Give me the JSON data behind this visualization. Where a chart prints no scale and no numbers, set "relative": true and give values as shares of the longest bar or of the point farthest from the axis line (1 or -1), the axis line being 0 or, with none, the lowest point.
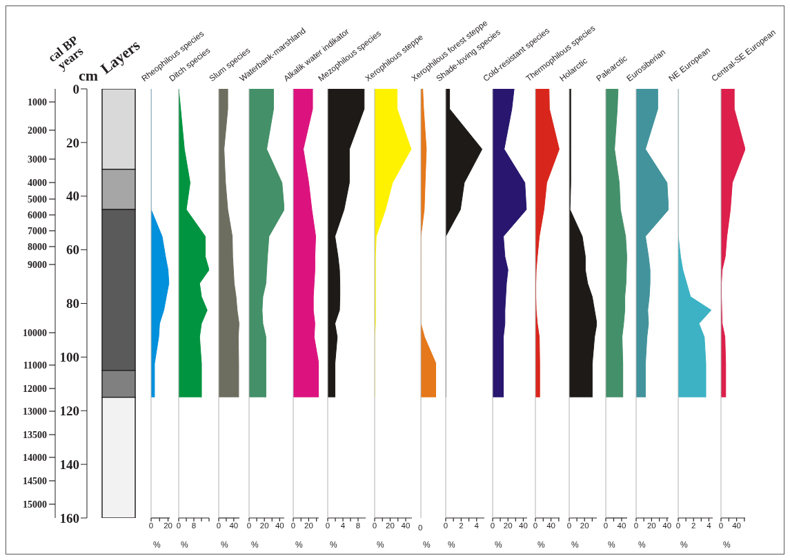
{
  "chart_data": [
    {
      "type": "bar",
      "title": "Layers",
      "ylabel": "cm",
      "y2label": "cal BP years",
      "categories": [
        null
      ],
      "stacked": true,
      "series": [
        {
          "color": "#d9d9d9",
          "values": [
            30
          ]
        },
        {
          "color": "#a6a6a6",
          "values": [
            15
          ]
        },
        {
          "color": "#5a5a5a",
          "values": [
            60
          ]
        },
        {
          "color": "#808080",
          "values": [
            10
          ]
        },
        {
          "color": "#f2f2f2",
          "values": [
            45
          ]
        }
      ],
      "ylim": [
        160,
        0
      ],
      "yticks": [
        0,
        20,
        40,
        60,
        80,
        100,
        120,
        140,
        160
      ],
      "annotations": [
        "1000",
        "2000",
        "3000",
        "4000",
        "5000",
        "6000",
        "7000",
        "8000",
        "9000",
        "10000",
        "11000",
        "12000",
        "13000",
        "13500",
        "14000",
        "14500",
        "15000"
      ]
    },
    {
      "type": "area",
      "orientation": "horizontal",
      "title": "Rheophilous species",
      "xlabel": "%",
      "color": "#0090dc",
      "x": [
        0,
        7.5,
        22.5,
        35,
        45,
        55,
        62.5,
        67.5,
        72.5,
        77.5,
        82.5,
        87.5,
        92.5,
        102.5,
        115
      ],
      "values": [
        0,
        0,
        0,
        0,
        0,
        13,
        17,
        20,
        21,
        18,
        15,
        10,
        9,
        4,
        4
      ],
      "xlim": [
        0,
        22
      ],
      "xticks": [
        0,
        {
          "value": 10,
          "label": null
        },
        20
      ],
      "ylim": [
        160,
        0
      ],
      "tick_labels": "x"
    },
    {
      "type": "area",
      "orientation": "horizontal",
      "title": "Ditch species",
      "xlabel": "%",
      "color": "#009440",
      "x": [
        0,
        7.5,
        22.5,
        35,
        45,
        55,
        62.5,
        67.5,
        72.5,
        77.5,
        82.5,
        87.5,
        92.5,
        102.5,
        115
      ],
      "values": [
        0,
        1,
        3,
        6,
        4,
        14,
        14,
        16,
        11,
        12,
        15,
        12,
        11,
        12,
        12
      ],
      "xlim": [
        0,
        16
      ],
      "xticks": [
        0,
        {
          "value": 4,
          "label": null
        },
        8,
        {
          "value": 12,
          "label": null
        },
        {
          "value": 16,
          "label": null
        }
      ],
      "ylim": [
        160,
        0
      ],
      "tick_labels": "x"
    },
    {
      "type": "area",
      "orientation": "horizontal",
      "title": "Slum species",
      "xlabel": "%",
      "color": "#6e6e60",
      "x": [
        0,
        7.5,
        22.5,
        35,
        45,
        55,
        62.5,
        67.5,
        72.5,
        77.5,
        82.5,
        87.5,
        92.5,
        102.5,
        115
      ],
      "values": [
        24,
        24,
        14,
        18,
        24,
        36,
        37,
        39,
        41,
        46,
        49,
        54,
        52,
        53,
        53
      ],
      "xlim": [
        0,
        55
      ],
      "xticks": [
        0,
        {
          "value": 20,
          "label": null
        },
        40
      ],
      "ylim": [
        160,
        0
      ],
      "tick_labels": "x"
    },
    {
      "type": "area",
      "orientation": "horizontal",
      "title": "Waterbank-marshland",
      "xlabel": "%",
      "color": "#449068",
      "x": [
        0,
        7.5,
        22.5,
        35,
        45,
        55,
        62.5,
        67.5,
        72.5,
        77.5,
        82.5,
        87.5,
        92.5,
        102.5,
        115
      ],
      "values": [
        32,
        32,
        23,
        43,
        46,
        26,
        24,
        23,
        22,
        18,
        17,
        18,
        22,
        22,
        22
      ],
      "xlim": [
        0,
        46
      ],
      "xticks": [
        0,
        {
          "value": 10,
          "label": null
        },
        20,
        {
          "value": 30,
          "label": null
        },
        40
      ],
      "ylim": [
        160,
        0
      ],
      "tick_labels": "x"
    },
    {
      "type": "area",
      "orientation": "horizontal",
      "title": "Alkalik water indikator",
      "xlabel": "%",
      "color": "#dc137f",
      "x": [
        0,
        7.5,
        22.5,
        35,
        45,
        55,
        62.5,
        67.5,
        72.5,
        77.5,
        82.5,
        87.5,
        92.5,
        102.5,
        115
      ],
      "values": [
        25,
        25,
        13,
        20,
        24,
        29,
        28,
        28,
        27,
        26,
        26,
        28,
        27,
        33,
        33
      ],
      "xlim": [
        0,
        33
      ],
      "xticks": [
        0,
        {
          "value": 10,
          "label": null
        },
        20,
        {
          "value": 30,
          "label": null
        }
      ],
      "ylim": [
        160,
        0
      ],
      "tick_labels": "x"
    },
    {
      "type": "area",
      "orientation": "horizontal",
      "title": "Mezophilous species",
      "xlabel": "%",
      "color": "#1e1a17",
      "x": [
        0,
        7.5,
        22.5,
        35,
        45,
        55,
        62.5,
        67.5,
        72.5,
        77.5,
        82.5,
        87.5,
        92.5,
        102.5,
        115
      ],
      "values": [
        9.6,
        9.6,
        5.7,
        5.7,
        4.3,
        1.9,
        2.7,
        3.1,
        3.2,
        3.2,
        3.1,
        1.9,
        2.5,
        1.9,
        1.9
      ],
      "xlim": [
        0,
        10
      ],
      "xticks": [
        0,
        {
          "value": 2,
          "label": null
        },
        4,
        {
          "value": 6,
          "label": null
        },
        8
      ],
      "ylim": [
        160,
        0
      ],
      "tick_labels": "x"
    },
    {
      "type": "area",
      "orientation": "horizontal",
      "title": "Xerophilous steppe",
      "xlabel": "%",
      "color": "#fff200",
      "x": [
        0,
        7.5,
        22.5,
        35,
        45,
        55,
        62.5,
        67.5,
        72.5,
        77.5,
        82.5,
        87.5,
        92.5,
        102.5,
        115
      ],
      "values": [
        29,
        29,
        47,
        23,
        14,
        2,
        1,
        1,
        1,
        1,
        1,
        1,
        0,
        0,
        0
      ],
      "xlim": [
        0,
        48
      ],
      "xticks": [
        0,
        {
          "value": 10,
          "label": null
        },
        20,
        {
          "value": 30,
          "label": null
        },
        40
      ],
      "ylim": [
        160,
        0
      ],
      "tick_labels": "x"
    },
    {
      "type": "area",
      "orientation": "horizontal",
      "relative": true,
      "title": "Xerophilous forest steppe",
      "xlabel": "%",
      "annotations": [
        "0"
      ],
      "color": "#e5781a",
      "x": [
        0,
        7.5,
        22.5,
        35,
        45,
        55,
        62.5,
        67.5,
        72.5,
        77.5,
        82.5,
        87.5,
        92.5,
        102.5,
        115
      ],
      "values": [
        0.12,
        0.18,
        0.36,
        0.28,
        0.22,
        0,
        0,
        0,
        0,
        0,
        0,
        0,
        0.24,
        1,
        1
      ],
      "ylim": [
        160,
        0
      ],
      "tick_labels": "x"
    },
    {
      "type": "area",
      "orientation": "horizontal",
      "title": "Shade-loving species",
      "xlabel": "%",
      "color": "#1e1a17",
      "x": [
        0,
        7.5,
        22.5,
        35,
        45,
        55,
        62.5,
        67.5,
        72.5,
        77.5,
        82.5,
        87.5,
        92.5,
        102.5,
        115
      ],
      "values": [
        0.5,
        0.5,
        4.7,
        2.4,
        1.9,
        0,
        0,
        0,
        0,
        0,
        0,
        0,
        0,
        0,
        0
      ],
      "xlim": [
        0,
        5
      ],
      "xticks": [
        0,
        {
          "value": 1,
          "label": null
        },
        2,
        {
          "value": 3,
          "label": null
        },
        4
      ],
      "ylim": [
        160,
        0
      ],
      "tick_labels": "x"
    },
    {
      "type": "area",
      "orientation": "horizontal",
      "title": "Cold-resistant species",
      "xlabel": "%",
      "color": "#28166f",
      "x": [
        0,
        7.5,
        22.5,
        35,
        45,
        55,
        62.5,
        67.5,
        72.5,
        77.5,
        82.5,
        87.5,
        92.5,
        102.5,
        115
      ],
      "values": [
        28,
        25,
        15,
        42,
        44,
        14,
        16,
        20,
        18,
        17,
        16,
        16,
        14,
        14,
        14
      ],
      "xlim": [
        0,
        45
      ],
      "xticks": [
        0,
        {
          "value": 10,
          "label": null
        },
        20,
        {
          "value": 30,
          "label": null
        },
        40
      ],
      "ylim": [
        160,
        0
      ],
      "tick_labels": "x"
    },
    {
      "type": "area",
      "orientation": "horizontal",
      "title": "Thermophilous species",
      "xlabel": "%",
      "color": "#d9261c",
      "x": [
        0,
        7.5,
        22.5,
        35,
        45,
        55,
        62.5,
        67.5,
        72.5,
        77.5,
        82.5,
        87.5,
        92.5,
        102.5,
        115
      ],
      "values": [
        35,
        36,
        61,
        29,
        22,
        10,
        5,
        2,
        1,
        1,
        2,
        5,
        10,
        11,
        11
      ],
      "xlim": [
        0,
        62
      ],
      "xticks": [
        0,
        {
          "value": 20,
          "label": null
        },
        40,
        {
          "value": 60,
          "label": null
        }
      ],
      "ylim": [
        160,
        0
      ],
      "tick_labels": "x"
    },
    {
      "type": "area",
      "orientation": "horizontal",
      "title": "Holarctic",
      "xlabel": "%",
      "color": "#1e1a17",
      "x": [
        0,
        7.5,
        22.5,
        35,
        45,
        55,
        62.5,
        67.5,
        72.5,
        77.5,
        82.5,
        87.5,
        92.5,
        102.5,
        115
      ],
      "values": [
        2,
        2,
        2,
        2,
        1,
        17,
        21,
        21,
        24,
        30,
        33,
        36,
        33,
        30,
        30
      ],
      "xlim": [
        0,
        36
      ],
      "xticks": [
        0,
        {
          "value": 10,
          "label": null
        },
        20,
        {
          "value": 30,
          "label": null
        }
      ],
      "ylim": [
        160,
        0
      ],
      "tick_labels": "x"
    },
    {
      "type": "area",
      "orientation": "horizontal",
      "title": "Palearctic",
      "xlabel": "%",
      "color": "#44906a",
      "x": [
        0,
        7.5,
        22.5,
        35,
        45,
        55,
        62.5,
        67.5,
        72.5,
        77.5,
        82.5,
        87.5,
        92.5,
        102.5,
        115
      ],
      "values": [
        31,
        29,
        22,
        34,
        37,
        50,
        53,
        52,
        51,
        48,
        48,
        45,
        41,
        43,
        43
      ],
      "xlim": [
        0,
        54
      ],
      "xticks": [
        0,
        {
          "value": 20,
          "label": null
        },
        40
      ],
      "ylim": [
        160,
        0
      ],
      "tick_labels": "x"
    },
    {
      "type": "area",
      "orientation": "horizontal",
      "title": "Eurosiberian",
      "xlabel": "%",
      "color": "#42939c",
      "x": [
        0,
        7.5,
        22.5,
        35,
        45,
        55,
        62.5,
        67.5,
        72.5,
        77.5,
        82.5,
        87.5,
        92.5,
        102.5,
        115
      ],
      "values": [
        28,
        28,
        12,
        40,
        42,
        12,
        16,
        18,
        18,
        17,
        15,
        16,
        14,
        12,
        12
      ],
      "xlim": [
        0,
        42
      ],
      "xticks": [
        0,
        {
          "value": 10,
          "label": null
        },
        20,
        {
          "value": 30,
          "label": null
        },
        40
      ],
      "ylim": [
        160,
        0
      ],
      "tick_labels": "x"
    },
    {
      "type": "area",
      "orientation": "horizontal",
      "title": "NE European",
      "xlabel": "%",
      "color": "#3cb2c4",
      "x": [
        0,
        7.5,
        22.5,
        35,
        45,
        55,
        62.5,
        67.5,
        72.5,
        77.5,
        82.5,
        87.5,
        92.5,
        102.5,
        115
      ],
      "values": [
        0,
        0,
        0,
        0,
        0,
        0,
        0.3,
        0.6,
        1.1,
        1.6,
        4.3,
        2.7,
        3.4,
        3.6,
        3.6
      ],
      "xlim": [
        0,
        4.5
      ],
      "xticks": [
        0,
        {
          "value": 1,
          "label": null
        },
        2,
        {
          "value": 3,
          "label": null
        },
        4
      ],
      "ylim": [
        160,
        0
      ],
      "tick_labels": "x"
    },
    {
      "type": "area",
      "orientation": "horizontal",
      "title": "Central-SE European",
      "xlabel": "%",
      "color": "#dc1f4b",
      "x": [
        0,
        7.5,
        22.5,
        35,
        45,
        55,
        62.5,
        67.5,
        72.5,
        77.5,
        82.5,
        87.5,
        92.5,
        102.5,
        115
      ],
      "values": [
        34,
        34,
        62,
        29,
        24,
        15,
        11,
        3,
        1,
        1,
        2,
        3,
        10,
        12,
        12
      ],
      "xlim": [
        0,
        62
      ],
      "xticks": [
        0,
        {
          "value": 20,
          "label": null
        },
        40,
        {
          "value": 60,
          "label": null
        }
      ],
      "ylim": [
        160,
        0
      ],
      "tick_labels": "x"
    }
  ]
}
